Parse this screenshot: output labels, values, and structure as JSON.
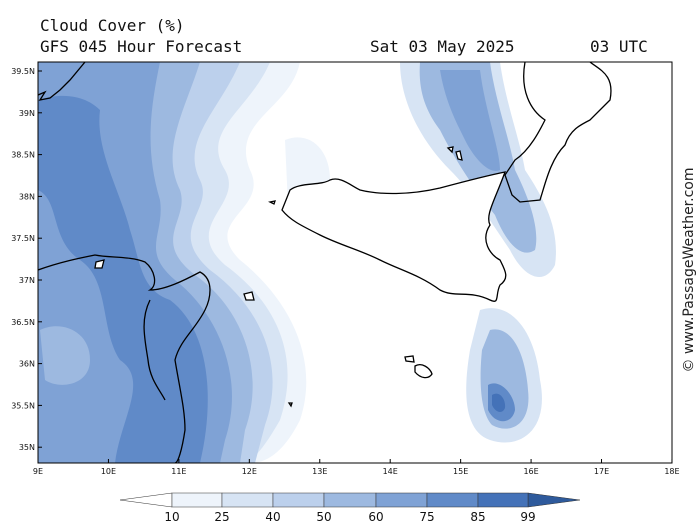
{
  "header": {
    "title": "Cloud Cover (%)",
    "subtitle": "GFS 045 Hour Forecast",
    "date": "Sat 03 May 2025",
    "time": "03 UTC"
  },
  "map": {
    "lat_labels": [
      "39.5N",
      "39N",
      "38.5N",
      "38N",
      "37.5N",
      "37N",
      "36.5N",
      "36N",
      "35.5N",
      "35N"
    ],
    "lon_labels": [
      "9E",
      "10E",
      "11E",
      "12E",
      "13E",
      "14E",
      "15E",
      "16E",
      "17E",
      "18E"
    ]
  },
  "colorbar": {
    "labels": [
      10,
      25,
      40,
      50,
      60,
      75,
      85,
      99
    ]
  },
  "credit": "© www.PassageWeather.com"
}
